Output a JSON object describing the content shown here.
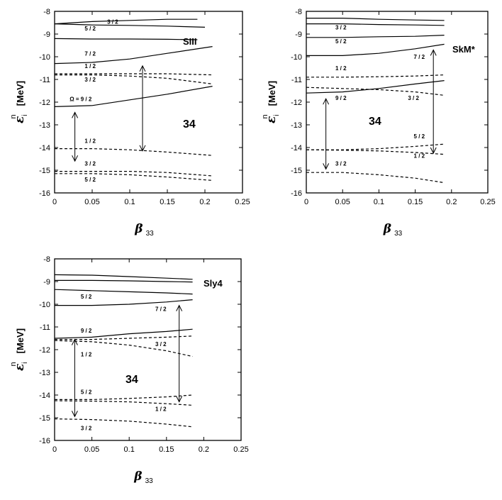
{
  "figure": {
    "ylabel": {
      "symbol": "ε",
      "sup": "n",
      "sub": "i",
      "unit": "[MeV]"
    },
    "xlabel": {
      "symbol": "β",
      "sub": "33"
    }
  },
  "chart_data": [
    {
      "type": "line",
      "panel_label": "SIII",
      "mass_label": "34",
      "xlim": [
        0,
        0.25
      ],
      "ylim": [
        -16,
        -8
      ],
      "xticks": [
        "0",
        "0.05",
        "0.1",
        "0.15",
        "0.2",
        "0.25"
      ],
      "yticks": [
        "-8",
        "-9",
        "-10",
        "-11",
        "-12",
        "-13",
        "-14",
        "-15",
        "-16"
      ],
      "grid": false,
      "series": [
        {
          "style": "solid",
          "x": [
            0,
            0.05,
            0.1,
            0.15,
            0.19
          ],
          "y": [
            -8.55,
            -8.45,
            -8.4,
            -8.35,
            -8.35
          ]
        },
        {
          "style": "solid",
          "x": [
            0,
            0.05,
            0.1,
            0.15,
            0.2
          ],
          "y": [
            -8.55,
            -8.6,
            -8.62,
            -8.65,
            -8.7
          ]
        },
        {
          "style": "solid",
          "x": [
            0,
            0.05,
            0.1,
            0.15,
            0.19
          ],
          "y": [
            -9.2,
            -9.22,
            -9.22,
            -9.23,
            -9.25
          ]
        },
        {
          "style": "solid",
          "x": [
            0,
            0.05,
            0.1,
            0.15,
            0.21
          ],
          "y": [
            -10.3,
            -10.25,
            -10.1,
            -9.85,
            -9.55
          ]
        },
        {
          "style": "dashed",
          "x": [
            0,
            0.05,
            0.1,
            0.15,
            0.21
          ],
          "y": [
            -10.75,
            -10.75,
            -10.75,
            -10.75,
            -10.8
          ]
        },
        {
          "style": "dashed",
          "x": [
            0,
            0.05,
            0.1,
            0.15,
            0.21
          ],
          "y": [
            -10.8,
            -10.8,
            -10.85,
            -10.95,
            -11.2
          ]
        },
        {
          "style": "solid",
          "x": [
            0,
            0.05,
            0.1,
            0.15,
            0.21
          ],
          "y": [
            -12.2,
            -12.15,
            -11.9,
            -11.65,
            -11.3
          ]
        },
        {
          "style": "dashed",
          "x": [
            0,
            0.05,
            0.1,
            0.15,
            0.21
          ],
          "y": [
            -14.05,
            -14.05,
            -14.1,
            -14.2,
            -14.35
          ]
        },
        {
          "style": "dashed",
          "x": [
            0,
            0.05,
            0.1,
            0.15,
            0.21
          ],
          "y": [
            -15.05,
            -15.05,
            -15.05,
            -15.1,
            -15.25
          ]
        },
        {
          "style": "dashed",
          "x": [
            0,
            0.05,
            0.1,
            0.15,
            0.21
          ],
          "y": [
            -15.15,
            -15.15,
            -15.2,
            -15.3,
            -15.45
          ]
        }
      ],
      "annotations": [
        {
          "text": "3 / 2",
          "x": 0.07,
          "y": -8.55
        },
        {
          "text": "5 / 2",
          "x": 0.04,
          "y": -8.85
        },
        {
          "text": "7 / 2",
          "x": 0.04,
          "y": -9.95
        },
        {
          "text": "1 / 2",
          "x": 0.04,
          "y": -10.5
        },
        {
          "text": "3 / 2",
          "x": 0.04,
          "y": -11.1
        },
        {
          "text": "Ω = 9 / 2",
          "x": 0.02,
          "y": -11.95
        },
        {
          "text": "1 / 2",
          "x": 0.04,
          "y": -13.8
        },
        {
          "text": "3 / 2",
          "x": 0.04,
          "y": -14.8
        },
        {
          "text": "5 / 2",
          "x": 0.04,
          "y": -15.5
        }
      ],
      "arrows": [
        {
          "x": 0.027,
          "y1": -12.45,
          "y2": -14.6
        },
        {
          "x": 0.117,
          "y1": -10.4,
          "y2": -14.15
        }
      ]
    },
    {
      "type": "line",
      "panel_label": "SkM*",
      "mass_label": "34",
      "xlim": [
        0,
        0.25
      ],
      "ylim": [
        -16,
        -8
      ],
      "xticks": [
        "0",
        "0.05",
        "0.1",
        "0.15",
        "0.2",
        "0.25"
      ],
      "yticks": [
        "-8",
        "-9",
        "-10",
        "-11",
        "-12",
        "-13",
        "-14",
        "-15",
        "-16"
      ],
      "grid": false,
      "series": [
        {
          "style": "solid",
          "x": [
            0,
            0.05,
            0.1,
            0.15,
            0.19
          ],
          "y": [
            -8.3,
            -8.3,
            -8.35,
            -8.38,
            -8.4
          ]
        },
        {
          "style": "solid",
          "x": [
            0,
            0.05,
            0.1,
            0.15,
            0.19
          ],
          "y": [
            -8.55,
            -8.55,
            -8.58,
            -8.6,
            -8.62
          ]
        },
        {
          "style": "solid",
          "x": [
            0,
            0.05,
            0.1,
            0.15,
            0.19
          ],
          "y": [
            -9.15,
            -9.15,
            -9.12,
            -9.1,
            -9.05
          ]
        },
        {
          "style": "solid",
          "x": [
            0,
            0.05,
            0.1,
            0.15,
            0.19
          ],
          "y": [
            -9.95,
            -9.95,
            -9.85,
            -9.65,
            -9.45
          ]
        },
        {
          "style": "dashed",
          "x": [
            0,
            0.05,
            0.1,
            0.15,
            0.19
          ],
          "y": [
            -10.9,
            -10.9,
            -10.88,
            -10.85,
            -10.8
          ]
        },
        {
          "style": "dashed",
          "x": [
            0,
            0.05,
            0.1,
            0.15,
            0.19
          ],
          "y": [
            -11.35,
            -11.4,
            -11.45,
            -11.55,
            -11.7
          ]
        },
        {
          "style": "solid",
          "x": [
            0,
            0.05,
            0.1,
            0.15,
            0.19
          ],
          "y": [
            -11.6,
            -11.55,
            -11.4,
            -11.2,
            -11.05
          ]
        },
        {
          "style": "dashed",
          "x": [
            0,
            0.05,
            0.1,
            0.15,
            0.19
          ],
          "y": [
            -14.1,
            -14.1,
            -14.05,
            -13.95,
            -13.85
          ]
        },
        {
          "style": "dashed",
          "x": [
            0,
            0.05,
            0.1,
            0.15,
            0.19
          ],
          "y": [
            -14.1,
            -14.12,
            -14.15,
            -14.22,
            -14.3
          ]
        },
        {
          "style": "dashed",
          "x": [
            0,
            0.05,
            0.1,
            0.15,
            0.19
          ],
          "y": [
            -15.1,
            -15.1,
            -15.2,
            -15.35,
            -15.55
          ]
        }
      ],
      "annotations": [
        {
          "text": "3 / 2",
          "x": 0.04,
          "y": -8.8
        },
        {
          "text": "5 / 2",
          "x": 0.04,
          "y": -9.4
        },
        {
          "text": "7 / 2",
          "x": 0.148,
          "y": -10.1
        },
        {
          "text": "1 / 2",
          "x": 0.04,
          "y": -10.6
        },
        {
          "text": "9 / 2",
          "x": 0.04,
          "y": -11.9
        },
        {
          "text": "3 / 2",
          "x": 0.14,
          "y": -11.9
        },
        {
          "text": "5 / 2",
          "x": 0.148,
          "y": -13.6
        },
        {
          "text": "1 / 2",
          "x": 0.148,
          "y": -14.45
        },
        {
          "text": "3 / 2",
          "x": 0.04,
          "y": -14.8
        }
      ],
      "arrows": [
        {
          "x": 0.027,
          "y1": -11.85,
          "y2": -14.95
        },
        {
          "x": 0.175,
          "y1": -9.7,
          "y2": -14.25
        }
      ]
    },
    {
      "type": "line",
      "panel_label": "Sly4",
      "mass_label": "34",
      "xlim": [
        0,
        0.25
      ],
      "ylim": [
        -16,
        -8
      ],
      "xticks": [
        "0",
        "0.05",
        "0.1",
        "0.15",
        "0.2",
        "0.25"
      ],
      "yticks": [
        "-8",
        "-9",
        "-10",
        "-11",
        "-12",
        "-13",
        "-14",
        "-15",
        "-16"
      ],
      "grid": false,
      "series": [
        {
          "style": "solid",
          "x": [
            0,
            0.05,
            0.1,
            0.15,
            0.185
          ],
          "y": [
            -8.7,
            -8.72,
            -8.78,
            -8.85,
            -8.9
          ]
        },
        {
          "style": "solid",
          "x": [
            0,
            0.05,
            0.1,
            0.15,
            0.185
          ],
          "y": [
            -8.95,
            -8.95,
            -8.97,
            -9.0,
            -9.02
          ]
        },
        {
          "style": "solid",
          "x": [
            0,
            0.05,
            0.1,
            0.15,
            0.185
          ],
          "y": [
            -9.35,
            -9.4,
            -9.45,
            -9.5,
            -9.55
          ]
        },
        {
          "style": "solid",
          "x": [
            0,
            0.05,
            0.1,
            0.15,
            0.185
          ],
          "y": [
            -10.05,
            -10.05,
            -10.0,
            -9.9,
            -9.8
          ]
        },
        {
          "style": "solid",
          "x": [
            0,
            0.05,
            0.1,
            0.15,
            0.185
          ],
          "y": [
            -11.5,
            -11.45,
            -11.3,
            -11.2,
            -11.1
          ]
        },
        {
          "style": "dashed",
          "x": [
            0,
            0.05,
            0.1,
            0.15,
            0.185
          ],
          "y": [
            -11.55,
            -11.55,
            -11.5,
            -11.45,
            -11.4
          ]
        },
        {
          "style": "dashed",
          "x": [
            0,
            0.05,
            0.1,
            0.15,
            0.185
          ],
          "y": [
            -11.6,
            -11.65,
            -11.8,
            -12.05,
            -12.3
          ]
        },
        {
          "style": "dashed",
          "x": [
            0,
            0.05,
            0.1,
            0.15,
            0.185
          ],
          "y": [
            -14.2,
            -14.2,
            -14.15,
            -14.08,
            -14.0
          ]
        },
        {
          "style": "dashed",
          "x": [
            0,
            0.05,
            0.1,
            0.15,
            0.185
          ],
          "y": [
            -14.25,
            -14.27,
            -14.3,
            -14.38,
            -14.45
          ]
        },
        {
          "style": "dashed",
          "x": [
            0,
            0.05,
            0.1,
            0.15,
            0.185
          ],
          "y": [
            -15.05,
            -15.08,
            -15.15,
            -15.28,
            -15.4
          ]
        }
      ],
      "annotations": [
        {
          "text": "5 / 2",
          "x": 0.035,
          "y": -9.75
        },
        {
          "text": "7 / 2",
          "x": 0.135,
          "y": -10.3
        },
        {
          "text": "9 / 2",
          "x": 0.035,
          "y": -11.25
        },
        {
          "text": "3 / 2",
          "x": 0.135,
          "y": -11.85
        },
        {
          "text": "1 / 2",
          "x": 0.035,
          "y": -12.3
        },
        {
          "text": "5 / 2",
          "x": 0.035,
          "y": -13.95
        },
        {
          "text": "1 / 2",
          "x": 0.135,
          "y": -14.7
        },
        {
          "text": "3 / 2",
          "x": 0.035,
          "y": -15.55
        }
      ],
      "arrows": [
        {
          "x": 0.027,
          "y1": -11.55,
          "y2": -14.95
        },
        {
          "x": 0.167,
          "y1": -10.05,
          "y2": -14.3
        }
      ]
    }
  ]
}
